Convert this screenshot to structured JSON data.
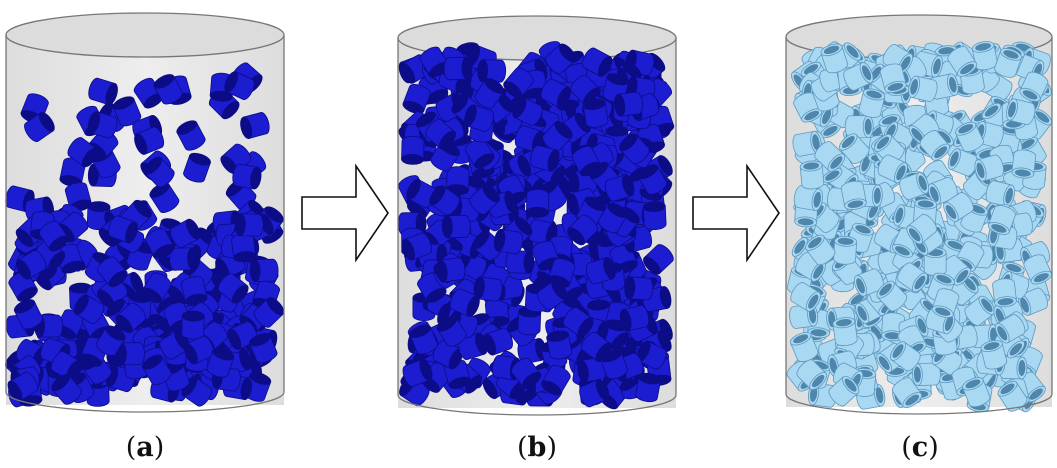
{
  "panels": [
    {
      "id": "a",
      "caption_open": "(",
      "caption_letter": "a",
      "caption_close": ")",
      "state": "falling particles, partially settled bed",
      "particle_color": "#1c1cd0",
      "particle_shade": "#0c0c86",
      "particle_type": "solid-cylinder"
    },
    {
      "id": "b",
      "caption_open": "(",
      "caption_letter": "b",
      "caption_close": ")",
      "state": "fully packed bed",
      "particle_color": "#1c1cd0",
      "particle_shade": "#0c0c86",
      "particle_type": "solid-cylinder"
    },
    {
      "id": "c",
      "caption_open": "(",
      "caption_letter": "c",
      "caption_close": ")",
      "state": "packed bed of hollow rings",
      "particle_color": "#a9d8f3",
      "particle_shade": "#5f98bd",
      "particle_type": "hollow-ring"
    }
  ],
  "arrows": [
    {
      "from": "a",
      "to": "b",
      "icon": "right-arrow-icon"
    },
    {
      "from": "b",
      "to": "c",
      "icon": "right-arrow-icon"
    }
  ],
  "colors": {
    "container_fill": "#d4d4d4",
    "container_stroke": "#777777",
    "arrow_fill": "#ffffff",
    "arrow_stroke": "#111111"
  }
}
